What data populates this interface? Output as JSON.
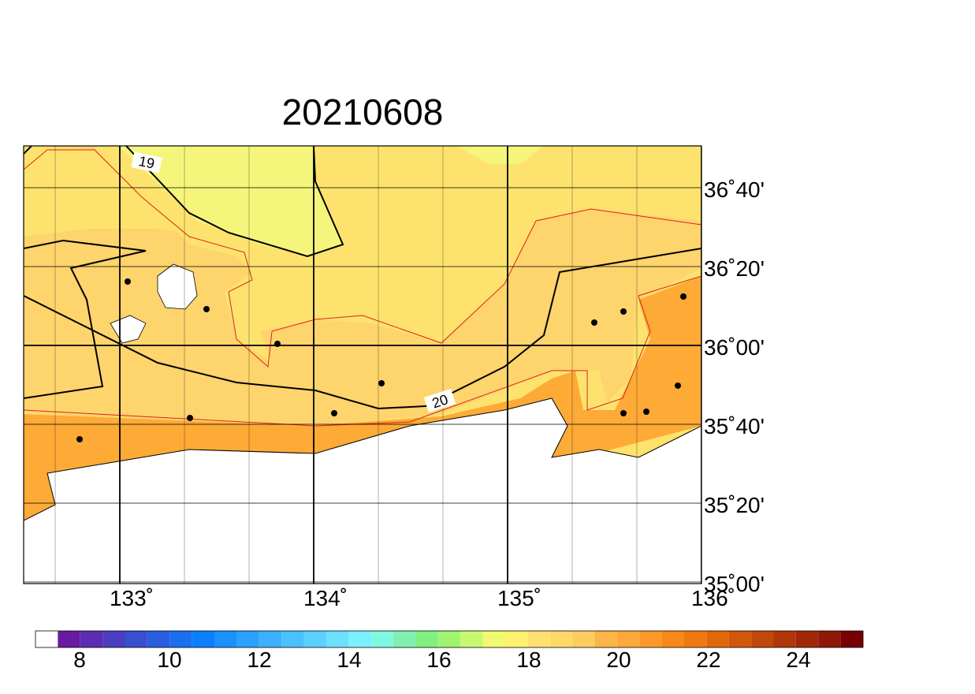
{
  "title": "20210608",
  "lon_labels": [
    "133˚",
    "134˚",
    "135˚",
    "136˚"
  ],
  "lat_labels": [
    "36˚40'",
    "36˚20'",
    "36˚00'",
    "35˚40'",
    "35˚20'",
    "35˚00'"
  ],
  "contour_labels": [
    "19",
    "20"
  ],
  "colorbar": {
    "labels": [
      "8",
      "10",
      "12",
      "14",
      "16",
      "18",
      "20",
      "22",
      "24"
    ]
  }
}
